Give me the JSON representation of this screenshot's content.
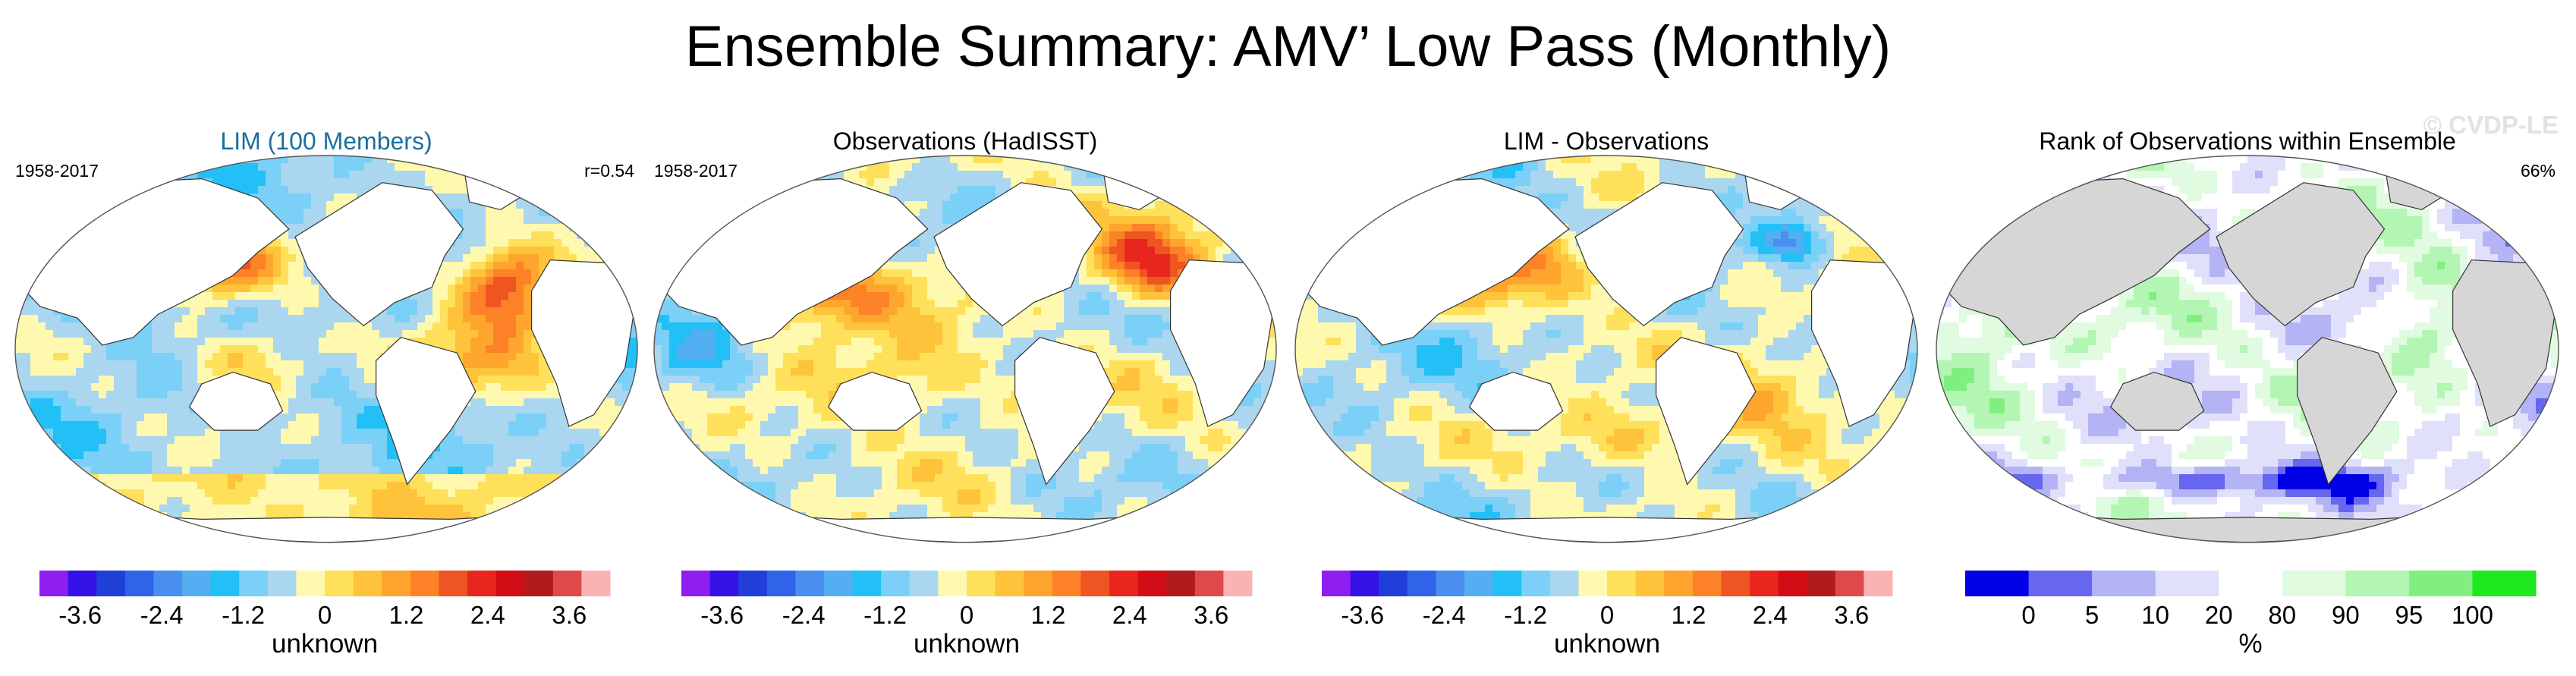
{
  "title": "Ensemble Summary: AMV’ Low Pass (Monthly)",
  "watermark": "© CVDP-LE",
  "chart_data": [
    {
      "type": "map",
      "panel_title": "LIM (100 Members)",
      "title_color": "#1a6fa0",
      "left_label": "1958-2017",
      "right_label": "r=0.54",
      "colorbar_label": "unknown",
      "colorbar_ticks": [
        "-3.6",
        "-2.4",
        "-1.2",
        "0",
        "1.2",
        "2.4",
        "3.6"
      ],
      "colorbar_range": [
        -4.2,
        4.2
      ],
      "colorbar_colors": [
        "#8f1ff0",
        "#3512e8",
        "#1f3fd8",
        "#2f64e8",
        "#4a8eef",
        "#54aef2",
        "#22c0f7",
        "#7ad0f7",
        "#aad6ef",
        "#fef9ae",
        "#fee05a",
        "#fec33a",
        "#fea52e",
        "#fd8127",
        "#ee5522",
        "#e8261e",
        "#d20d16",
        "#b11b1b",
        "#de4a4a",
        "#fab3b3"
      ],
      "land_color": "#ffffff",
      "ocean_base": "#a9d5f3"
    },
    {
      "type": "map",
      "panel_title": "Observations (HadISST)",
      "title_color": "#000000",
      "left_label": "1958-2017",
      "right_label": "",
      "colorbar_label": "unknown",
      "colorbar_ticks": [
        "-3.6",
        "-2.4",
        "-1.2",
        "0",
        "1.2",
        "2.4",
        "3.6"
      ],
      "colorbar_range": [
        -4.2,
        4.2
      ],
      "colorbar_colors": [
        "#8f1ff0",
        "#3512e8",
        "#1f3fd8",
        "#2f64e8",
        "#4a8eef",
        "#54aef2",
        "#22c0f7",
        "#7ad0f7",
        "#aad6ef",
        "#fef9ae",
        "#fee05a",
        "#fec33a",
        "#fea52e",
        "#fd8127",
        "#ee5522",
        "#e8261e",
        "#d20d16",
        "#b11b1b",
        "#de4a4a",
        "#fab3b3"
      ],
      "land_color": "#ffffff",
      "ocean_base": "#b4daf5"
    },
    {
      "type": "map",
      "panel_title": "LIM - Observations",
      "title_color": "#000000",
      "left_label": "",
      "right_label": "",
      "colorbar_label": "unknown",
      "colorbar_ticks": [
        "-3.6",
        "-2.4",
        "-1.2",
        "0",
        "1.2",
        "2.4",
        "3.6"
      ],
      "colorbar_range": [
        -4.2,
        4.2
      ],
      "colorbar_colors": [
        "#8f1ff0",
        "#3512e8",
        "#1f3fd8",
        "#2f64e8",
        "#4a8eef",
        "#54aef2",
        "#22c0f7",
        "#7ad0f7",
        "#aad6ef",
        "#fef9ae",
        "#fee05a",
        "#fec33a",
        "#fea52e",
        "#fd8127",
        "#ee5522",
        "#e8261e",
        "#d20d16",
        "#b11b1b",
        "#de4a4a",
        "#fab3b3"
      ],
      "land_color": "#ffffff",
      "ocean_base": "#a3d1f2"
    },
    {
      "type": "map",
      "panel_title": "Rank of Observations within Ensemble",
      "title_color": "#000000",
      "left_label": "",
      "right_label": "66%",
      "colorbar_label": "%",
      "colorbar_ticks": [
        "0",
        "5",
        "10",
        "20",
        "80",
        "90",
        "95",
        "100"
      ],
      "colorbar_tick_pos": [
        1,
        2,
        3,
        4,
        5,
        6,
        7,
        8
      ],
      "colorbar_range": [
        0,
        9
      ],
      "colorbar_colors": [
        "#0000e6",
        "#6666ee",
        "#b3b3f5",
        "#e0e0fb",
        "#ffffff",
        "#e0fbe0",
        "#b3f5b3",
        "#80ef80",
        "#1ee81e"
      ],
      "land_color": "#d6d6d6",
      "ocean_base": "#ffffff"
    }
  ]
}
